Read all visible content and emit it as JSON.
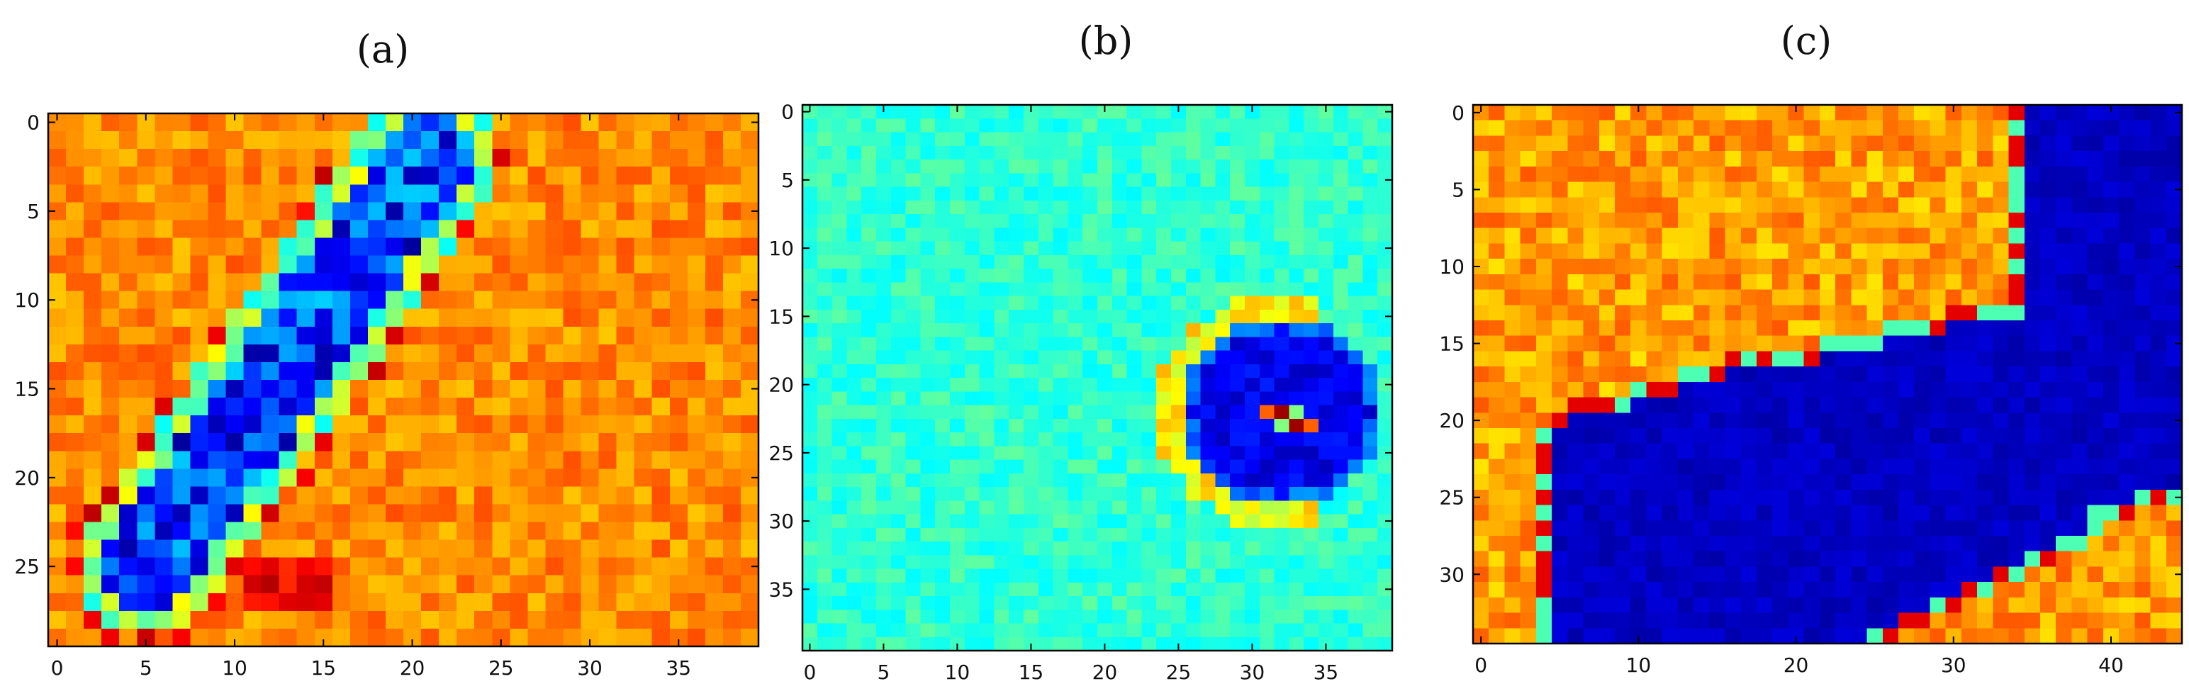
{
  "chart_data": [
    {
      "type": "heatmap",
      "title": "(a)",
      "colormap": "jet",
      "rows": 30,
      "cols": 40,
      "xlim": [
        -0.5,
        39.5
      ],
      "ylim": [
        29.5,
        -0.5
      ],
      "xticks": [
        0,
        5,
        10,
        15,
        20,
        25,
        30,
        35
      ],
      "yticks": [
        0,
        5,
        10,
        15,
        20,
        25
      ],
      "grid": false,
      "background_level": 0.74,
      "features": [
        {
          "shape": "diagonal-band",
          "from": [
            21,
            2
          ],
          "to": [
            5,
            25
          ],
          "half_width": 3.6,
          "level": 0.18,
          "edge_level": 0.86
        },
        {
          "shape": "hot-spot",
          "center": [
            13,
            26
          ],
          "radius": 2.8,
          "level": 0.95
        }
      ]
    },
    {
      "type": "heatmap",
      "title": "(b)",
      "colormap": "jet",
      "rows": 40,
      "cols": 40,
      "xlim": [
        -0.5,
        39.5
      ],
      "ylim": [
        39.5,
        -0.5
      ],
      "xticks": [
        0,
        5,
        10,
        15,
        20,
        25,
        30,
        35
      ],
      "yticks": [
        0,
        5,
        10,
        15,
        20,
        25,
        30,
        35
      ],
      "grid": false,
      "background_level": 0.42,
      "features": [
        {
          "shape": "disk",
          "center": [
            32,
            22
          ],
          "radius": 7,
          "level": 0.06,
          "ring_level": 0.55
        },
        {
          "shape": "point-pair",
          "center": [
            32.5,
            22.5
          ],
          "level": 0.97
        }
      ]
    },
    {
      "type": "heatmap",
      "title": "(c)",
      "colormap": "jet",
      "rows": 35,
      "cols": 45,
      "xlim": [
        -0.5,
        44.5
      ],
      "ylim": [
        34.5,
        -0.5
      ],
      "xticks": [
        0,
        10,
        20,
        30,
        40
      ],
      "yticks": [
        0,
        5,
        10,
        15,
        20,
        25,
        30
      ],
      "grid": false,
      "background_level": 0.72,
      "features": [
        {
          "shape": "region",
          "description_level": 0.04,
          "level": 0.04,
          "edge_level": 0.9
        }
      ]
    }
  ],
  "colors": {
    "frame": "#000000",
    "background": "#ffffff"
  }
}
